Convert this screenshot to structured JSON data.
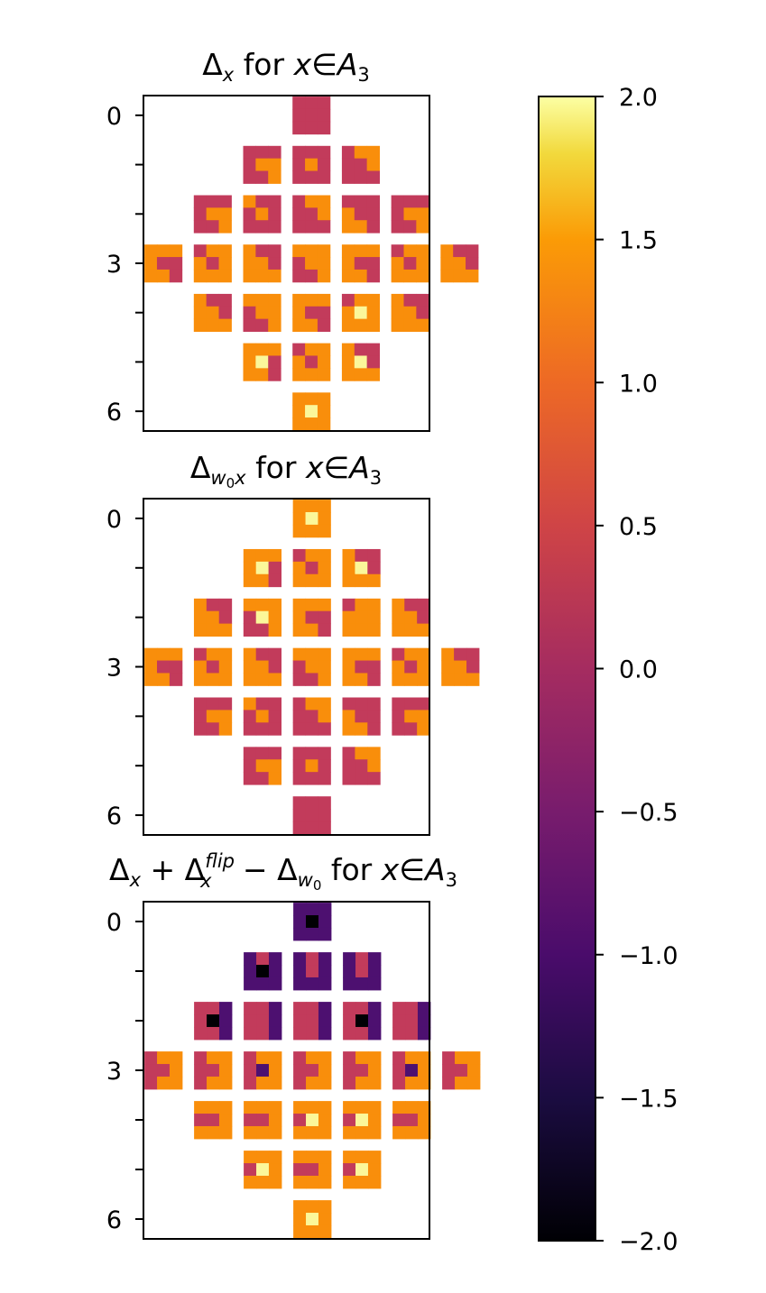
{
  "chart_data": [
    {
      "type": "heatmap",
      "title_parts": {
        "delta": "Δ",
        "sub": "x",
        "text": " for ",
        "var": "x",
        "in": "∈",
        "set": "A",
        "set_sub": "3"
      },
      "y_tick_labels": [
        "0",
        "3",
        "6"
      ],
      "y_ticks": [
        0,
        3,
        6
      ],
      "ylim": [
        -0.4,
        6.4
      ],
      "colormap": "inferno",
      "pattern": "delta"
    },
    {
      "type": "heatmap",
      "title_parts": {
        "delta": "Δ",
        "sub_a": "w",
        "sub_a_sub": "0",
        "sub_b": "x",
        "text": " for ",
        "var": "x",
        "in": "∈",
        "set": "A",
        "set_sub": "3"
      },
      "y_tick_labels": [
        "0",
        "3",
        "6"
      ],
      "y_ticks": [
        0,
        3,
        6
      ],
      "ylim": [
        -0.4,
        6.4
      ],
      "colormap": "inferno",
      "pattern": "delta_w0"
    },
    {
      "type": "heatmap",
      "title_parts": {
        "d1": "Δ",
        "d1_sub": "x",
        "plus": " + ",
        "d2": "Δ",
        "d2_sub": "x",
        "d2_sup": "flip",
        "minus": " − ",
        "d3": "Δ",
        "d3_sub": "w",
        "d3_sub_sub": "0",
        "text": " for ",
        "var": "x",
        "in": "∈",
        "set": "A",
        "set_sub": "3"
      },
      "y_tick_labels": [
        "0",
        "3",
        "6"
      ],
      "y_ticks": [
        0,
        3,
        6
      ],
      "ylim": [
        -0.4,
        6.4
      ],
      "colormap": "inferno",
      "pattern": "combined"
    }
  ],
  "colorbar": {
    "range": [
      -2.0,
      2.0
    ],
    "ticks": [
      2.0,
      1.5,
      1.0,
      0.5,
      0.0,
      -0.5,
      -1.0,
      -1.5,
      -2.0
    ],
    "tick_labels": [
      "2.0",
      "1.5",
      "1.0",
      "0.5",
      "0.0",
      "−0.5",
      "−1.0",
      "−1.5",
      "−2.0"
    ]
  },
  "colors": {
    "low": "#000004",
    "high": "#fcffa4"
  }
}
